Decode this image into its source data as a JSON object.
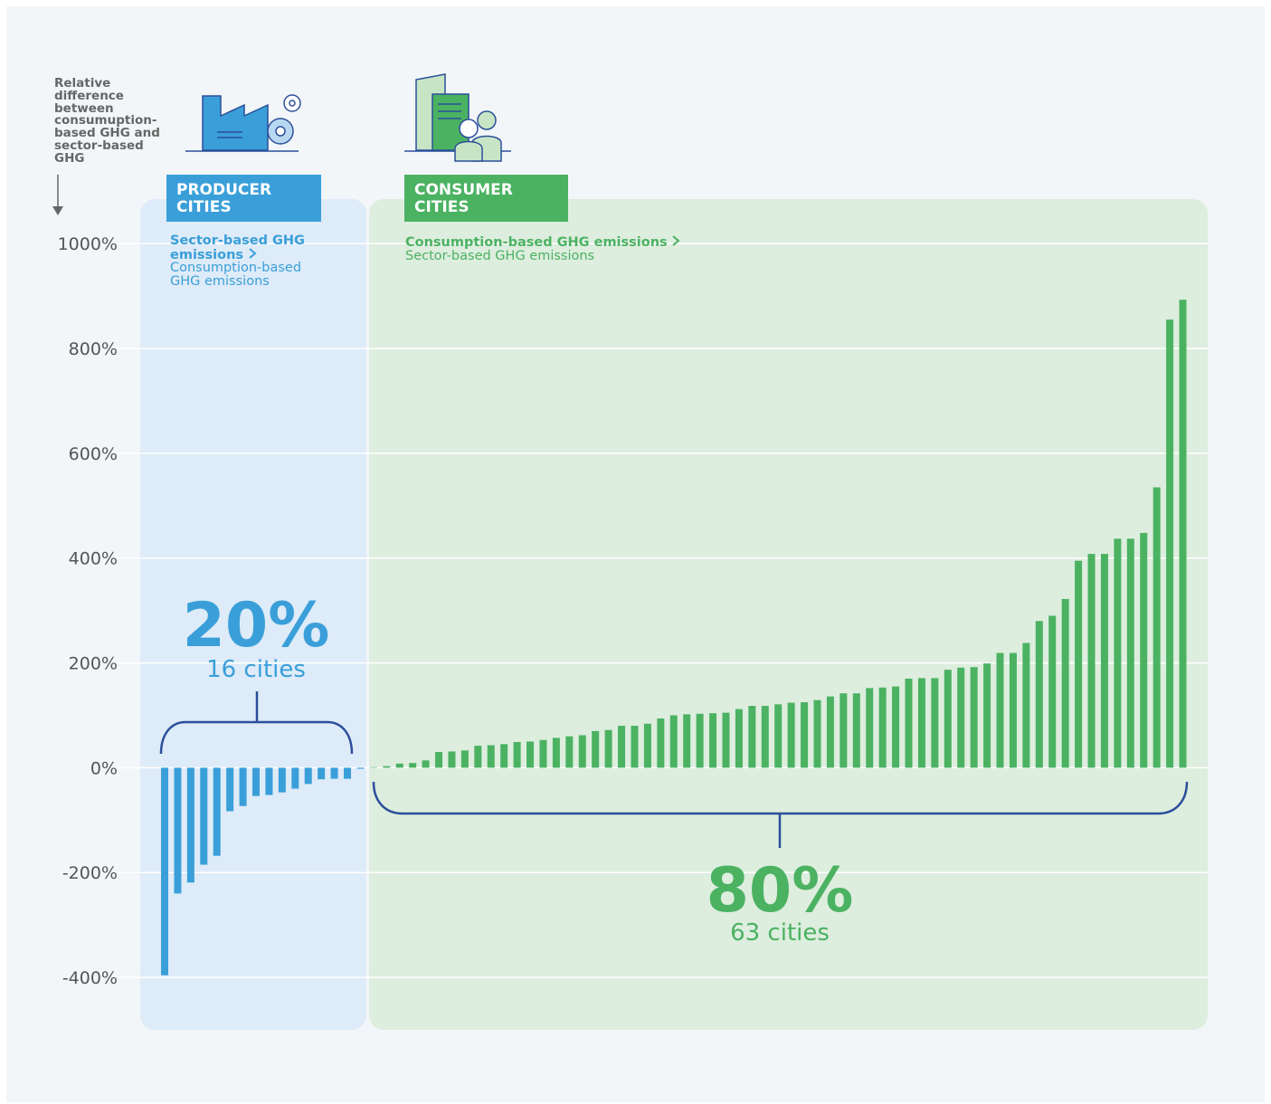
{
  "chart_data": {
    "type": "bar",
    "y_label": "Relative difference between consumuption-based GHG and sector-based GHG",
    "ylim": [
      -500,
      1085
    ],
    "yticks": [
      {
        "value": -400,
        "label": "-400%"
      },
      {
        "value": -200,
        "label": "-200%"
      },
      {
        "value": 0,
        "label": "0%"
      },
      {
        "value": 200,
        "label": "200%"
      },
      {
        "value": 400,
        "label": "400%"
      },
      {
        "value": 600,
        "label": "600%"
      },
      {
        "value": 800,
        "label": "800%"
      },
      {
        "value": 1000,
        "label": "1000%"
      }
    ],
    "grid": true,
    "series": [
      {
        "name": "PRODUCER CITIES",
        "color": "#3a9fd9",
        "note": [
          "Sector-based GHG emissions",
          "Consumption-based GHG emissions"
        ],
        "share": "20%",
        "count": "16 cities",
        "values": [
          -396,
          -240,
          -219,
          -185,
          -168,
          -83,
          -73,
          -54,
          -52,
          -47,
          -40,
          -31,
          -22,
          -21,
          -21,
          -2
        ]
      },
      {
        "name": "CONSUMER CITIES",
        "color": "#4bb262",
        "note": [
          "Consumption-based GHG emissions",
          "Sector-based GHG emissions"
        ],
        "share": "80%",
        "count": "63 cities",
        "values": [
          1,
          3,
          8,
          9,
          14,
          30,
          31,
          33,
          42,
          43,
          45,
          49,
          50,
          53,
          57,
          60,
          62,
          70,
          72,
          80,
          80,
          84,
          94,
          100,
          102,
          103,
          104,
          105,
          112,
          118,
          118,
          121,
          124,
          125,
          129,
          136,
          142,
          142,
          152,
          153,
          155,
          170,
          171,
          171,
          187,
          191,
          192,
          199,
          219,
          219,
          238,
          280,
          290,
          322,
          395,
          408,
          408,
          437,
          437,
          448,
          535,
          855,
          893
        ]
      }
    ]
  }
}
